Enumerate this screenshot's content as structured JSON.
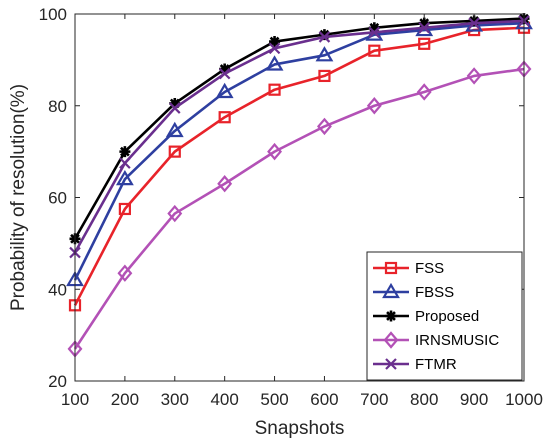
{
  "chart_data": {
    "type": "line",
    "title": "",
    "xlabel": "Snapshots",
    "ylabel": "Probability of resolution(%)",
    "xlim": [
      100,
      1000
    ],
    "ylim": [
      20,
      100
    ],
    "x": [
      100,
      200,
      300,
      400,
      500,
      600,
      700,
      800,
      900,
      1000
    ],
    "x_ticks": [
      "100",
      "200",
      "300",
      "400",
      "500",
      "600",
      "700",
      "800",
      "900",
      "1000"
    ],
    "y_ticks": [
      "20",
      "40",
      "60",
      "80",
      "100"
    ],
    "grid": false,
    "legend_position": "bottom-right",
    "series": [
      {
        "name": "FSS",
        "color": "#e8232a",
        "marker": "square",
        "values": [
          36.5,
          57.5,
          70,
          77.5,
          83.5,
          86.5,
          92,
          93.5,
          96.5,
          97
        ]
      },
      {
        "name": "FBSS",
        "color": "#2e3fa0",
        "marker": "triangle",
        "values": [
          42,
          64,
          74.5,
          83,
          89,
          91,
          95.5,
          96.5,
          97.5,
          98
        ]
      },
      {
        "name": "Proposed",
        "color": "#000000",
        "marker": "asterisk",
        "values": [
          51,
          70,
          80.5,
          88,
          94,
          95.5,
          97,
          98,
          98.5,
          99
        ]
      },
      {
        "name": "IRNSMUSIC",
        "color": "#b351b6",
        "marker": "diamond",
        "values": [
          27,
          43.5,
          56.5,
          63,
          70,
          75.5,
          80,
          83,
          86.5,
          88
        ]
      },
      {
        "name": "FTMR",
        "color": "#6a2f8e",
        "marker": "x",
        "values": [
          48,
          67.5,
          79.5,
          87,
          92.5,
          95,
          96,
          97,
          98,
          98.5
        ]
      }
    ]
  }
}
